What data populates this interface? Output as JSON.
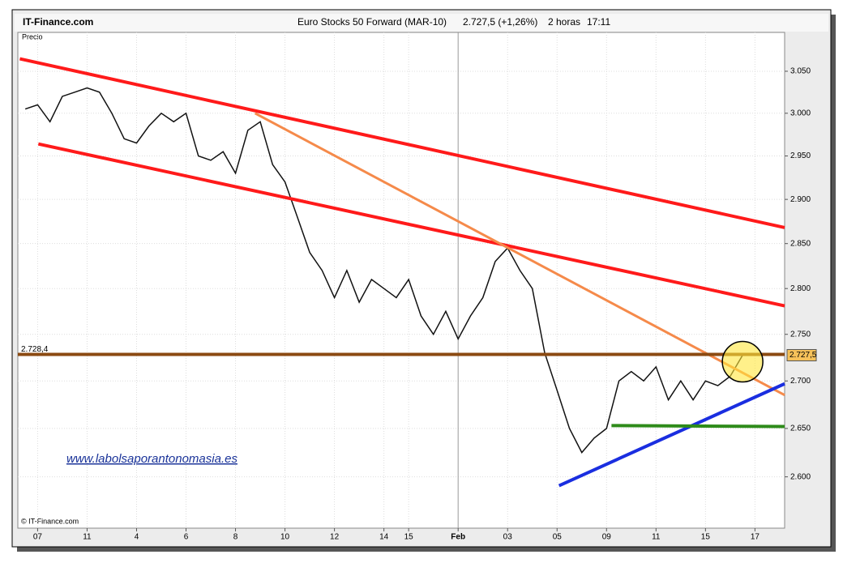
{
  "chart_data": {
    "type": "line",
    "brand": "IT-Finance.com",
    "title": "Euro Stocks 50 Forward (MAR-10)",
    "last": "2.727,5 (+1,26%)",
    "interval": "2 horas",
    "time": "17:11",
    "y_label": "Precio",
    "watermark": "www.labolsaporantonomasia.es",
    "copyright": "© IT-Finance.com",
    "log_y": true,
    "grid": true,
    "color": "#111111",
    "xlim": [
      -0.8,
      30.2
    ],
    "ylim": [
      2548,
      3097
    ],
    "xticks": [
      {
        "value": 0,
        "label": "07"
      },
      {
        "value": 2,
        "label": "11"
      },
      4,
      6,
      8,
      10,
      12,
      14,
      15,
      {
        "value": 17,
        "label": "Feb"
      },
      {
        "value": 19,
        "label": "03"
      },
      {
        "value": 21,
        "label": "05"
      },
      {
        "value": 23,
        "label": "09"
      },
      {
        "value": 25,
        "label": "11"
      },
      {
        "value": 27,
        "label": "15"
      },
      {
        "value": 29,
        "label": "17"
      }
    ],
    "yticks": [
      {
        "value": 2600,
        "label": "2.600"
      },
      {
        "value": 2650,
        "label": "2.650"
      },
      {
        "value": 2700,
        "label": "2.700"
      },
      {
        "value": 2750,
        "label": "2.750"
      },
      {
        "value": 2800,
        "label": "2.800"
      },
      {
        "value": 2850,
        "label": "2.850"
      },
      {
        "value": 2900,
        "label": "2.900"
      },
      {
        "value": 2950,
        "label": "2.950"
      },
      {
        "value": 3000,
        "label": "3.000"
      },
      {
        "value": 3050,
        "label": "3.050"
      }
    ],
    "x": [
      -0.5,
      0,
      0.5,
      1,
      1.5,
      2,
      2.5,
      3,
      3.5,
      4,
      4.5,
      5,
      5.5,
      6,
      6.5,
      7,
      7.5,
      8,
      8.5,
      9,
      9.5,
      10,
      10.5,
      11,
      11.5,
      12,
      12.5,
      13,
      13.5,
      14,
      14.5,
      15,
      15.5,
      16,
      16.5,
      17,
      17.5,
      18,
      18.5,
      19,
      19.5,
      20,
      20.5,
      21,
      21.5,
      22,
      22.5,
      23,
      23.5,
      24,
      24.5,
      25,
      25.5,
      26,
      26.5,
      27,
      27.5,
      28,
      28.5
    ],
    "values": [
      3005,
      3010,
      2990,
      3020,
      3025,
      3030,
      3025,
      3000,
      2970,
      2965,
      2985,
      3000,
      2990,
      3000,
      2950,
      2945,
      2955,
      2930,
      2980,
      2990,
      2940,
      2920,
      2880,
      2840,
      2820,
      2790,
      2820,
      2785,
      2810,
      2800,
      2790,
      2810,
      2770,
      2750,
      2775,
      2745,
      2770,
      2790,
      2830,
      2845,
      2820,
      2800,
      2730,
      2690,
      2650,
      2625,
      2640,
      2650,
      2700,
      2710,
      2700,
      2715,
      2680,
      2700,
      2680,
      2700,
      2695,
      2705,
      2727.5
    ],
    "trend_lines": [
      {
        "color": "#ff1a1a",
        "points": [
          {
            "x": -0.72,
            "y": 3065
          },
          {
            "x": 30.2,
            "y": 2868
          }
        ]
      },
      {
        "color": "#ff1a1a",
        "points": [
          {
            "x": 0.03,
            "y": 2964
          },
          {
            "x": 30.2,
            "y": 2781
          }
        ]
      },
      {
        "color": "#f58a4a",
        "points": [
          {
            "x": 8.79,
            "y": 3000
          },
          {
            "x": 30.2,
            "y": 2685
          }
        ]
      },
      {
        "color": "#8b4a12",
        "points": [
          {
            "x": -0.8,
            "y": 2728.4
          },
          {
            "x": 30.2,
            "y": 2728.4
          }
        ]
      },
      {
        "color": "#1a2ee0",
        "points": [
          {
            "x": 21.08,
            "y": 2591
          },
          {
            "x": 30.2,
            "y": 2697
          }
        ]
      },
      {
        "color": "#2e8b1a",
        "points": [
          {
            "x": 23.2,
            "y": 2653
          },
          {
            "x": 30.2,
            "y": 2652
          }
        ]
      }
    ],
    "price_labels": [
      {
        "value": 2728.4,
        "label": "2.728,4"
      },
      {
        "value": 2727.5,
        "label": "2.727,5"
      }
    ]
  }
}
